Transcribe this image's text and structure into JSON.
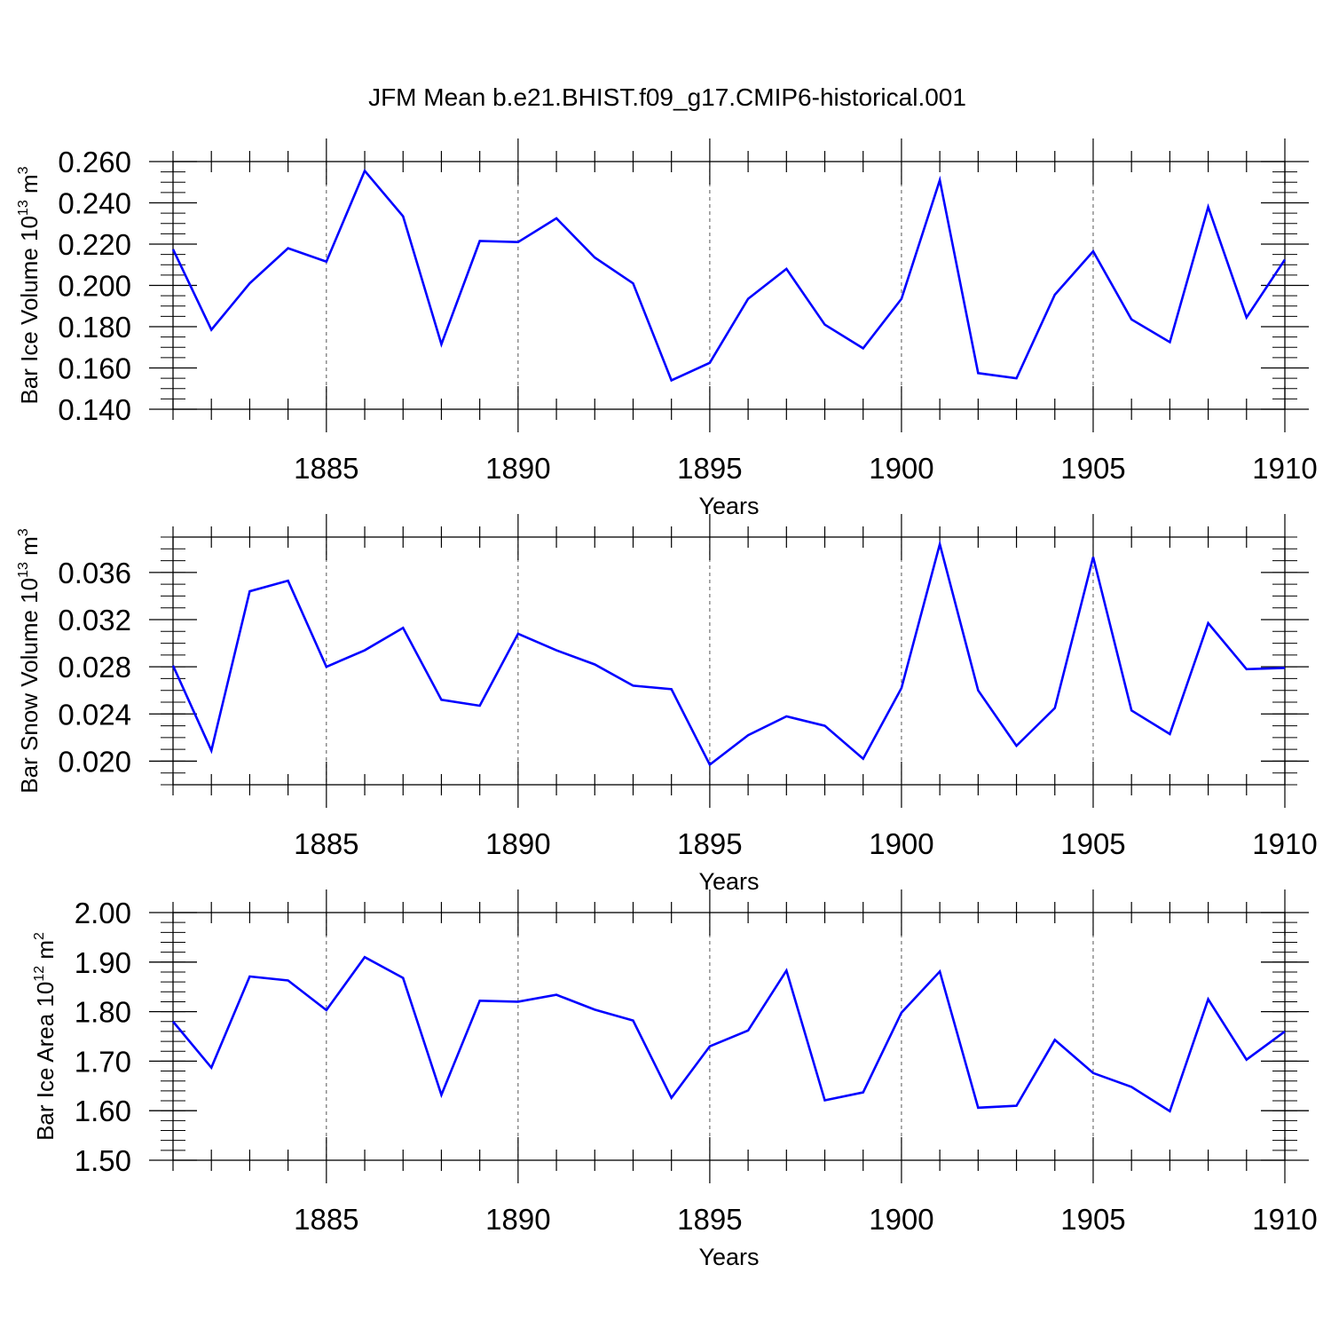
{
  "title": "JFM Mean b.e21.BHIST.f09_g17.CMIP6-historical.001",
  "colors": {
    "line": "#0000ff",
    "axis": "#000000",
    "grid": "#555555"
  },
  "chart_data": [
    {
      "type": "line",
      "ylabel": {
        "main": "Bar Ice Volume 10",
        "sup": "13",
        "unit": " m",
        "unit_sup": "3"
      },
      "xlabel": "Years",
      "xlim": [
        1881,
        1910
      ],
      "ylim": [
        0.14,
        0.26
      ],
      "xticks": [
        1885,
        1890,
        1895,
        1900,
        1905,
        1910
      ],
      "yticks": [
        0.14,
        0.16,
        0.18,
        0.2,
        0.22,
        0.24,
        0.26
      ],
      "ytick_labels": [
        "0.140",
        "0.160",
        "0.180",
        "0.200",
        "0.220",
        "0.240",
        "0.260"
      ],
      "yminor_step": 0.005,
      "grid": "vertical dashed at major x ticks",
      "x": [
        1881,
        1882,
        1883,
        1884,
        1885,
        1886,
        1887,
        1888,
        1889,
        1890,
        1891,
        1892,
        1893,
        1894,
        1895,
        1896,
        1897,
        1898,
        1899,
        1900,
        1901,
        1902,
        1903,
        1904,
        1905,
        1906,
        1907,
        1908,
        1909,
        1910
      ],
      "values": [
        0.2175,
        0.1785,
        0.201,
        0.218,
        0.2115,
        0.2555,
        0.2335,
        0.1715,
        0.2215,
        0.221,
        0.2325,
        0.2135,
        0.201,
        0.154,
        0.1625,
        0.1935,
        0.208,
        0.181,
        0.1695,
        0.1935,
        0.251,
        0.1575,
        0.155,
        0.1955,
        0.2165,
        0.1835,
        0.1725,
        0.238,
        0.1845,
        0.2125
      ]
    },
    {
      "type": "line",
      "ylabel": {
        "main": "Bar Snow Volume 10",
        "sup": "13",
        "unit": " m",
        "unit_sup": "3"
      },
      "xlabel": "Years",
      "xlim": [
        1881,
        1910
      ],
      "ylim": [
        0.018,
        0.039
      ],
      "xticks": [
        1885,
        1890,
        1895,
        1900,
        1905,
        1910
      ],
      "yticks": [
        0.02,
        0.024,
        0.028,
        0.032,
        0.036
      ],
      "ytick_labels": [
        "0.020",
        "0.024",
        "0.028",
        "0.032",
        "0.036"
      ],
      "yminor_step": 0.001,
      "grid": "vertical dashed at major x ticks",
      "x": [
        1881,
        1882,
        1883,
        1884,
        1885,
        1886,
        1887,
        1888,
        1889,
        1890,
        1891,
        1892,
        1893,
        1894,
        1895,
        1896,
        1897,
        1898,
        1899,
        1900,
        1901,
        1902,
        1903,
        1904,
        1905,
        1906,
        1907,
        1908,
        1909,
        1910
      ],
      "values": [
        0.0281,
        0.0209,
        0.0344,
        0.0353,
        0.028,
        0.0294,
        0.0313,
        0.0252,
        0.0247,
        0.0308,
        0.0294,
        0.0282,
        0.0264,
        0.0261,
        0.0197,
        0.0222,
        0.0238,
        0.023,
        0.0202,
        0.0262,
        0.0384,
        0.026,
        0.0213,
        0.0245,
        0.0373,
        0.0243,
        0.0223,
        0.0317,
        0.0278,
        0.0279
      ]
    },
    {
      "type": "line",
      "ylabel": {
        "main": "Bar Ice Area 10",
        "sup": "12",
        "unit": " m",
        "unit_sup": "2"
      },
      "xlabel": "Years",
      "xlim": [
        1881,
        1910
      ],
      "ylim": [
        1.5,
        2.0
      ],
      "xticks": [
        1885,
        1890,
        1895,
        1900,
        1905,
        1910
      ],
      "yticks": [
        1.5,
        1.6,
        1.7,
        1.8,
        1.9,
        2.0
      ],
      "ytick_labels": [
        "1.50",
        "1.60",
        "1.70",
        "1.80",
        "1.90",
        "2.00"
      ],
      "yminor_step": 0.02,
      "grid": "vertical dashed at major x ticks",
      "x": [
        1881,
        1882,
        1883,
        1884,
        1885,
        1886,
        1887,
        1888,
        1889,
        1890,
        1891,
        1892,
        1893,
        1894,
        1895,
        1896,
        1897,
        1898,
        1899,
        1900,
        1901,
        1902,
        1903,
        1904,
        1905,
        1906,
        1907,
        1908,
        1909,
        1910
      ],
      "values": [
        1.78,
        1.687,
        1.871,
        1.863,
        1.803,
        1.91,
        1.868,
        1.632,
        1.822,
        1.82,
        1.834,
        1.804,
        1.782,
        1.626,
        1.73,
        1.762,
        1.883,
        1.621,
        1.637,
        1.798,
        1.881,
        1.606,
        1.61,
        1.743,
        1.676,
        1.648,
        1.599,
        1.825,
        1.703,
        1.76
      ]
    }
  ]
}
